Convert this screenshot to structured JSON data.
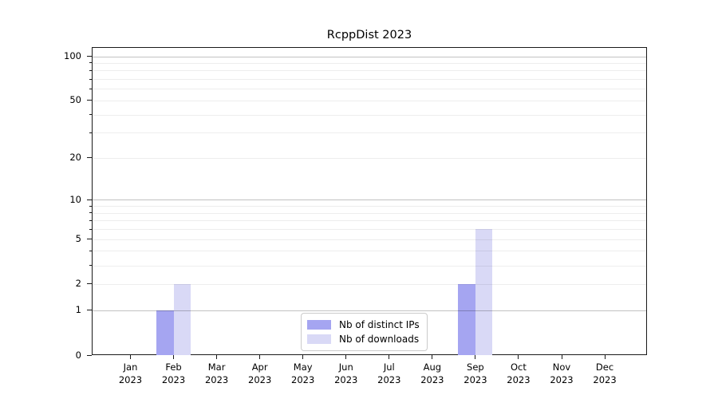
{
  "title": "RcppDist 2023",
  "chart_data": {
    "type": "bar",
    "title": "RcppDist 2023",
    "categories": [
      "Jan 2023",
      "Feb 2023",
      "Mar 2023",
      "Apr 2023",
      "May 2023",
      "Jun 2023",
      "Jul 2023",
      "Aug 2023",
      "Sep 2023",
      "Oct 2023",
      "Nov 2023",
      "Dec 2023"
    ],
    "series": [
      {
        "name": "Nb of distinct IPs",
        "color": "#a5a5f1",
        "values": [
          0,
          1,
          0,
          0,
          0,
          0,
          0,
          0,
          2,
          0,
          0,
          0
        ]
      },
      {
        "name": "Nb of downloads",
        "color": "#d9d9f6",
        "values": [
          0,
          2,
          0,
          0,
          0,
          0,
          0,
          0,
          6,
          0,
          0,
          0
        ]
      }
    ],
    "xlabel": "",
    "ylabel": "",
    "yscale": "log1p",
    "ylim": [
      0,
      116
    ],
    "y_major_ticks": [
      0,
      1,
      2,
      5,
      10,
      20,
      50,
      100
    ],
    "y_minor_ticks": [
      3,
      4,
      6,
      7,
      8,
      9,
      30,
      40,
      60,
      70,
      80,
      90
    ],
    "grid": true,
    "legend_position": "lower center"
  }
}
